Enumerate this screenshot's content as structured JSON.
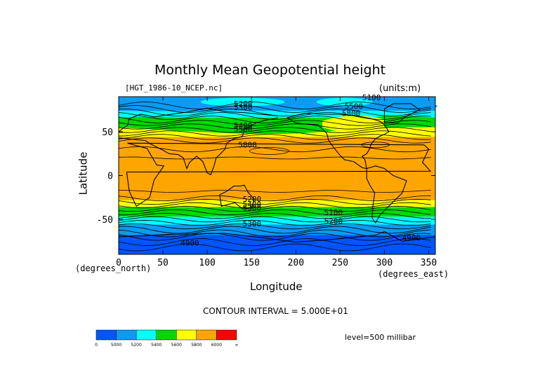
{
  "title": "Monthly Mean Geopotential height",
  "file_label": "[HGT_1986-10_NCEP.nc]",
  "units_label": "(units:m)",
  "y_axis": {
    "label": "Latitude",
    "unit_label": "(degrees_north)",
    "ticks": [
      "50",
      "0",
      "-50"
    ]
  },
  "x_axis": {
    "label": "Longitude",
    "unit_label": "(degrees_east)",
    "ticks": [
      "0",
      "50",
      "100",
      "150",
      "200",
      "250",
      "300",
      "350"
    ]
  },
  "contour_interval_text": "CONTOUR INTERVAL = 5.000E+01",
  "level_text": "level=500 millibar",
  "colorbar": {
    "labels": [
      "0",
      "5000",
      "5200",
      "5400",
      "5600",
      "5800",
      "6000",
      "∞"
    ],
    "colors": [
      "#0055ff",
      "#0a9bf5",
      "#00ffff",
      "#00d800",
      "#ffff00",
      "#ffa500",
      "#ff0000"
    ]
  },
  "contour_labels": [
    {
      "text": "5200"
    },
    {
      "text": "5300"
    },
    {
      "text": "5400"
    },
    {
      "text": "5500"
    },
    {
      "text": "5800"
    },
    {
      "text": "5100"
    },
    {
      "text": "5500"
    },
    {
      "text": "5800"
    },
    {
      "text": "5200"
    },
    {
      "text": "5400"
    },
    {
      "text": "5300"
    },
    {
      "text": "5100"
    },
    {
      "text": "5200"
    },
    {
      "text": "5300"
    },
    {
      "text": "4900"
    },
    {
      "text": "4900"
    }
  ]
}
